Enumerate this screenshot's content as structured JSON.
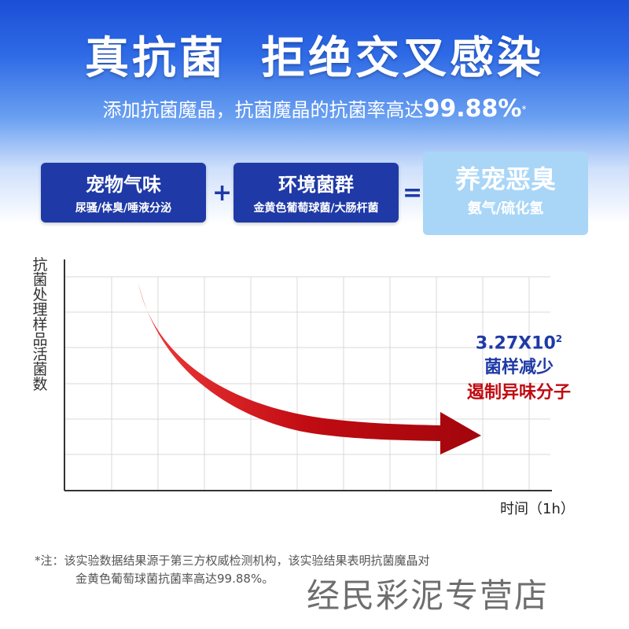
{
  "headline": {
    "left": "真抗菌",
    "right": "拒绝交叉感染"
  },
  "subline": {
    "text": "添加抗菌魔晶，抗菌魔晶的抗菌率高达",
    "percent": "99.88%",
    "mark": "*"
  },
  "formula": {
    "box1": {
      "title": "宠物气味",
      "sub": "尿骚/体臭/唾液分泌"
    },
    "plus": "+",
    "box2": {
      "title": "环境菌群",
      "sub": "金黄色葡萄球菌/大肠杆菌"
    },
    "equals": "=",
    "box3": {
      "title": "养宠恶臭",
      "sub": "氨气/硫化氢"
    }
  },
  "chart": {
    "y_axis_label": "抗菌处理样品活菌数",
    "x_axis_label": "时间（1h）",
    "annotation": {
      "count_base": "3.27X10",
      "count_exp": "2",
      "line2": "菌样减少",
      "line3": "遏制异味分子"
    }
  },
  "chart_data": {
    "type": "line",
    "title": "",
    "xlabel": "时间（1h）",
    "ylabel": "抗菌处理样品活菌数",
    "grid": true,
    "series": [
      {
        "values": [
          1.0,
          0.55,
          0.3,
          0.16,
          0.08,
          0.05
        ]
      }
    ],
    "color": "#c00b12"
  },
  "note": {
    "line1": "*注：该实验数据结果源于第三方权威检测机构，该实验结果表明抗菌魔晶对",
    "line2": "金黄色葡萄球菌抗菌率高达99.88%。"
  },
  "watermark": "经民彩泥专营店",
  "colors": {
    "accent_blue": "#1f3aa6",
    "accent_red": "#c00b12",
    "light_blue": "#a9d6f7"
  }
}
